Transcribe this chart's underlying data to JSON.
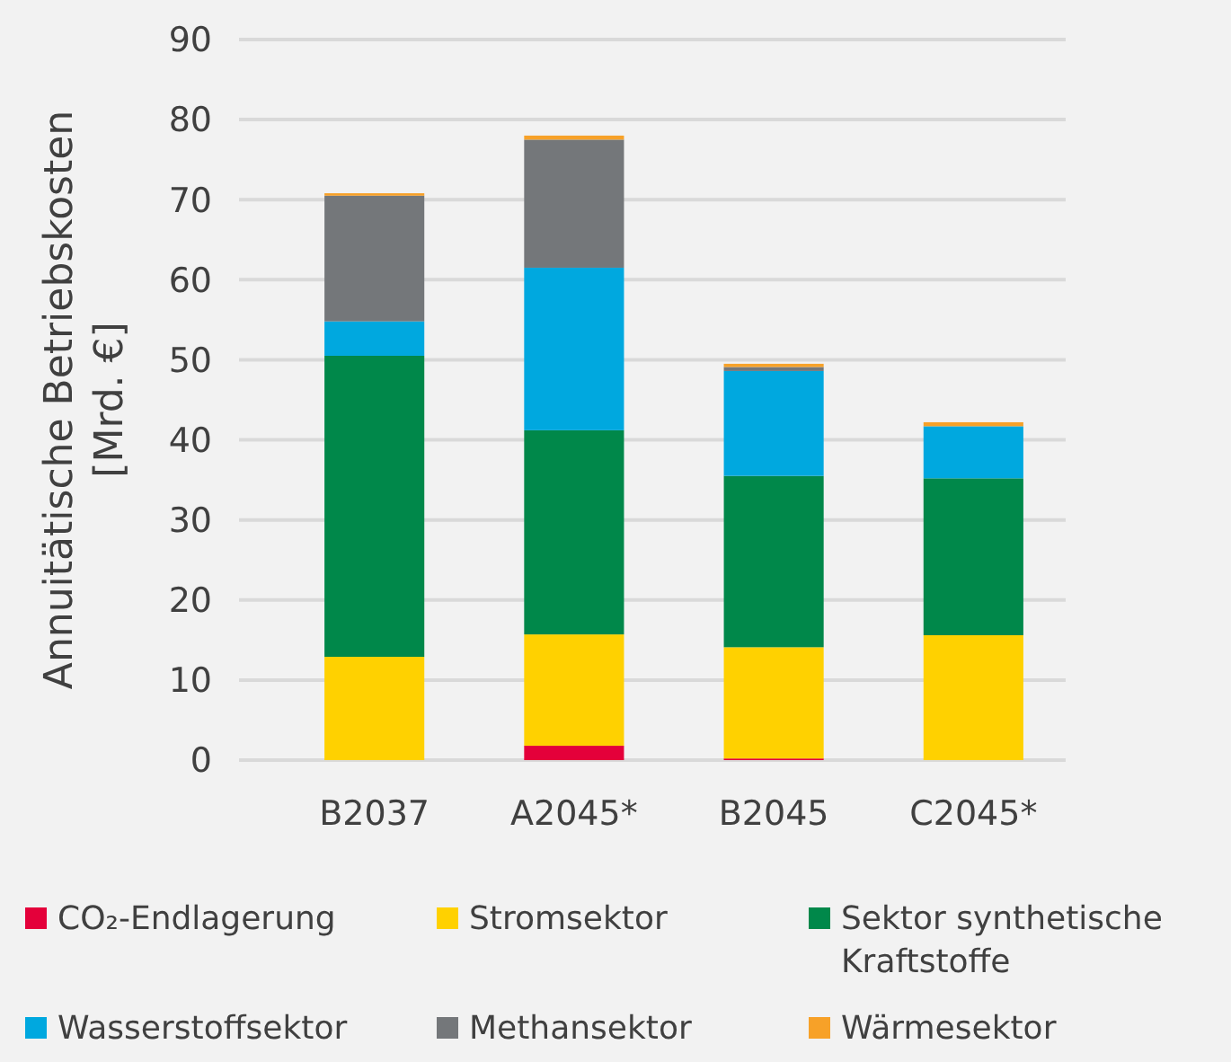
{
  "chart_data": {
    "type": "bar",
    "stacked": true,
    "ylabel": "Annuitätische Betriebskosten\n[Mrd. €]",
    "categories": [
      "B2037",
      "A2045*",
      "B2045",
      "C2045*"
    ],
    "series": [
      {
        "name": "CO₂-Endlagerung",
        "color": "#e4003a",
        "values": [
          0,
          1.8,
          0.2,
          0
        ]
      },
      {
        "name": "Stromsektor",
        "color": "#ffd100",
        "values": [
          12.9,
          13.9,
          13.9,
          15.6
        ]
      },
      {
        "name": "Sektor synthetische Kraftstoffe",
        "color": "#00884a",
        "values": [
          37.6,
          25.5,
          21.4,
          19.6
        ]
      },
      {
        "name": "Wasserstoffsektor",
        "color": "#00a8df",
        "values": [
          4.3,
          20.3,
          13.1,
          6.5
        ]
      },
      {
        "name": "Methansektor",
        "color": "#74777a",
        "values": [
          15.7,
          16.0,
          0.5,
          0
        ]
      },
      {
        "name": "Wärmesektor",
        "color": "#f7a128",
        "values": [
          0.3,
          0.5,
          0.4,
          0.5
        ]
      }
    ],
    "ylim": [
      0,
      90
    ],
    "yticks": [
      0,
      10,
      20,
      30,
      40,
      50,
      60,
      70,
      80,
      90
    ],
    "grid": "y",
    "legend": "bottom"
  }
}
